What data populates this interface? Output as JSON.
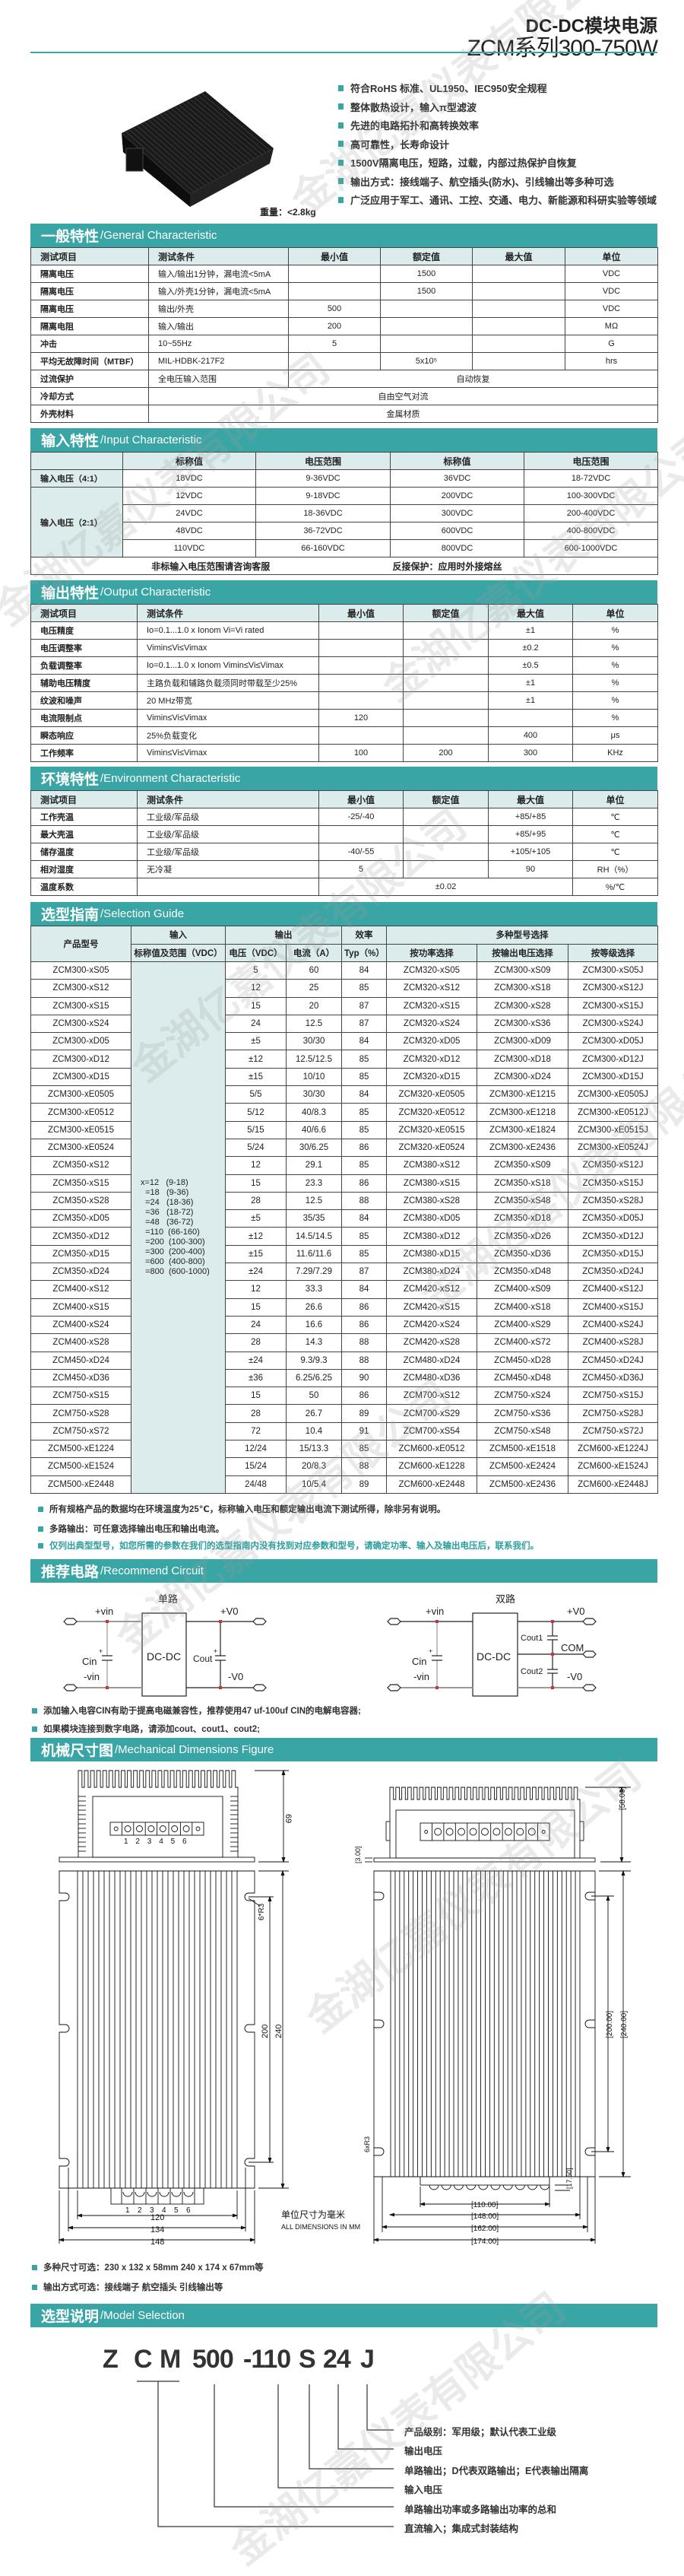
{
  "watermark": "金湖亿嘉仪表有限公司",
  "header": {
    "title": "DC-DC模块电源",
    "subtitle": "ZCM系列300-750W"
  },
  "features": [
    "符合RoHS 标准、UL1950、IEC950安全规程",
    "整体散热设计，输入π型滤波",
    "先进的电路拓扑和高转换效率",
    "高可靠性，长寿命设计",
    "1500V隔离电压，短路，过载，内部过热保护自恢复",
    "输出方式：接线端子、航空插头(防水)、引线输出等多种可选",
    "广泛应用于军工、通讯、工控、交通、电力、新能源和科研实验等领域"
  ],
  "weight": "重量：<2.8kg",
  "colors": {
    "accent": "#3aa5a5",
    "header_bg": "#dcecec"
  },
  "general": {
    "title_zh": "一般特性",
    "title_en": "/General Characteristic",
    "headers": [
      "测试项目",
      "测试条件",
      "最小值",
      "额定值",
      "最大值",
      "单位"
    ],
    "rows": [
      [
        "隔离电压",
        "输入/输出1分钟，漏电流<5mA",
        "",
        "1500",
        "",
        "VDC"
      ],
      [
        "隔离电压",
        "输入/外壳1分钟，漏电流<5mA",
        "",
        "1500",
        "",
        "VDC"
      ],
      [
        "隔离电压",
        "输出/外壳",
        "500",
        "",
        "",
        "VDC"
      ],
      [
        "隔离电阻",
        "输入/输出",
        "200",
        "",
        "",
        "MΩ"
      ],
      [
        "冲击",
        "10~55Hz",
        "5",
        "",
        "",
        "G"
      ],
      [
        "平均无故障时间（MTBF）",
        "MIL-HDBK-217F2",
        "",
        "5x10⁵",
        "",
        "hrs"
      ],
      [
        "过流保护",
        "全电压输入范围",
        "自动恢复"
      ],
      [
        "冷却方式",
        "自由空气对流"
      ],
      [
        "外壳材料",
        "金属材质"
      ]
    ]
  },
  "input": {
    "title_zh": "输入特性",
    "title_en": "/Input Characteristic",
    "headers": [
      "",
      "标称值",
      "电压范围",
      "标称值",
      "电压范围"
    ],
    "group_4_1": "输入电压（4:1）",
    "group_2_1": "输入电压（2:1）",
    "rows": [
      [
        "18VDC",
        "9-36VDC",
        "36VDC",
        "18-72VDC"
      ],
      [
        "12VDC",
        "9-18VDC",
        "200VDC",
        "100-300VDC"
      ],
      [
        "24VDC",
        "18-36VDC",
        "300VDC",
        "200-400VDC"
      ],
      [
        "48VDC",
        "36-72VDC",
        "600VDC",
        "400-800VDC"
      ],
      [
        "110VDC",
        "66-160VDC",
        "800VDC",
        "600-1000VDC"
      ]
    ],
    "note_left": "非标输入电压范围请咨询客服",
    "note_right": "反接保护：应用时外接熔丝"
  },
  "output": {
    "title_zh": "输出特性",
    "title_en": "/Output Characteristic",
    "headers": [
      "测试项目",
      "测试条件",
      "最小值",
      "额定值",
      "最大值",
      "单位"
    ],
    "rows": [
      [
        "电压精度",
        "Io=0.1...1.0 x Ionom Vi=Vi rated",
        "",
        "",
        "±1",
        "%"
      ],
      [
        "电压调整率",
        "Vimin≤Vi≤Vimax",
        "",
        "",
        "±0.2",
        "%"
      ],
      [
        "负载调整率",
        "Io=0.1...1.0 x Ionom Vimin≤Vi≤Vimax",
        "",
        "",
        "±0.5",
        "%"
      ],
      [
        "辅助电压精度",
        "主路负载和辅路负载须同时带载至少25%",
        "",
        "",
        "±1",
        "%"
      ],
      [
        "纹波和噪声",
        "20 MHz带宽",
        "",
        "",
        "±1",
        "%"
      ],
      [
        "电流限制点",
        "Vimin≤Vi≤Vimax",
        "120",
        "",
        "",
        "%"
      ],
      [
        "瞬态响应",
        "25%负载变化",
        "",
        "",
        "400",
        "μs"
      ],
      [
        "工作频率",
        "Vimin≤Vi≤Vimax",
        "100",
        "200",
        "300",
        "KHz"
      ]
    ]
  },
  "environment": {
    "title_zh": "环境特性",
    "title_en": "/Environment Characteristic",
    "headers": [
      "测试项目",
      "测试条件",
      "最小值",
      "额定值",
      "最大值",
      "单位"
    ],
    "rows": [
      [
        "工作壳温",
        "工业级/军品级",
        "-25/-40",
        "",
        "+85/+85",
        "℃"
      ],
      [
        "最大壳温",
        "工业级/军品级",
        "",
        "",
        "+85/+95",
        "℃"
      ],
      [
        "储存温度",
        "工业级/军品级",
        "-40/-55",
        "",
        "+105/+105",
        "℃"
      ],
      [
        "相对湿度",
        "无冷凝",
        "5",
        "",
        "90",
        "RH（%）"
      ],
      [
        "温度系数",
        "",
        "±0.02",
        "%/℃"
      ]
    ]
  },
  "selection": {
    "title_zh": "选型指南",
    "title_en": "/Selection Guide",
    "h_model": "产品型号",
    "h_input": "输入",
    "h_output": "输出",
    "h_eff": "效率",
    "h_multi": "多种型号选择",
    "h_input_sub": "标称值及范围（VDC）",
    "h_voltage": "电压（VDC）",
    "h_current": "电流（A）",
    "h_typ": "Typ（%）",
    "h_by_power": "按功率选择",
    "h_by_vout": "按输出电压选择",
    "h_by_grade": "按等级选择",
    "input_codes": "x=12   (9-18)\n  =18   (9-36)\n  =24   (18-36)\n  =36   (18-72)\n  =48   (36-72)\n  =110  (66-160)\n  =200  (100-300)\n  =300  (200-400)\n  =600  (400-800)\n  =800  (600-1000)",
    "rows": [
      [
        "ZCM300-xS05",
        "5",
        "60",
        "84",
        "ZCM320-xS05",
        "ZCM300-xS09",
        "ZCM300-xS05J"
      ],
      [
        "ZCM300-xS12",
        "12",
        "25",
        "85",
        "ZCM320-xS12",
        "ZCM300-xS18",
        "ZCM300-xS12J"
      ],
      [
        "ZCM300-xS15",
        "15",
        "20",
        "87",
        "ZCM320-xS15",
        "ZCM300-xS28",
        "ZCM300-xS15J"
      ],
      [
        "ZCM300-xS24",
        "24",
        "12.5",
        "87",
        "ZCM320-xS24",
        "ZCM300-xS36",
        "ZCM300-xS24J"
      ],
      [
        "ZCM300-xD05",
        "±5",
        "30/30",
        "84",
        "ZCM320-xD05",
        "ZCM300-xD09",
        "ZCM300-xD05J"
      ],
      [
        "ZCM300-xD12",
        "±12",
        "12.5/12.5",
        "85",
        "ZCM320-xD12",
        "ZCM300-xD18",
        "ZCM300-xD12J"
      ],
      [
        "ZCM300-xD15",
        "±15",
        "10/10",
        "85",
        "ZCM320-xD15",
        "ZCM300-xD24",
        "ZCM300-xD15J"
      ],
      [
        "ZCM300-xE0505",
        "5/5",
        "30/30",
        "84",
        "ZCM320-xE0505",
        "ZCM300-xE1215",
        "ZCM300-xE0505J"
      ],
      [
        "ZCM300-xE0512",
        "5/12",
        "40/8.3",
        "85",
        "ZCM320-xE0512",
        "ZCM300-xE1218",
        "ZCM300-xE0512J"
      ],
      [
        "ZCM300-xE0515",
        "5/15",
        "40/6.6",
        "85",
        "ZCM320-xE0515",
        "ZCM300-xE1824",
        "ZCM300-xE0515J"
      ],
      [
        "ZCM300-xE0524",
        "5/24",
        "30/6.25",
        "86",
        "ZCM320-xE0524",
        "ZCM300-xE2436",
        "ZCM300-xE0524J"
      ],
      [
        "ZCM350-xS12",
        "12",
        "29.1",
        "85",
        "ZCM380-xS12",
        "ZCM350-xS09",
        "ZCM350-xS12J"
      ],
      [
        "ZCM350-xS15",
        "15",
        "23.3",
        "86",
        "ZCM380-xS15",
        "ZCM350-xS18",
        "ZCM350-xS15J"
      ],
      [
        "ZCM350-xS28",
        "28",
        "12.5",
        "88",
        "ZCM380-xS28",
        "ZCM350-xS48",
        "ZCM350-xS28J"
      ],
      [
        "ZCM350-xD05",
        "±5",
        "35/35",
        "84",
        "ZCM380-xD05",
        "ZCM350-xD18",
        "ZCM350-xD05J"
      ],
      [
        "ZCM350-xD12",
        "±12",
        "14.5/14.5",
        "85",
        "ZCM380-xD12",
        "ZCM350-xD26",
        "ZCM350-xD12J"
      ],
      [
        "ZCM350-xD15",
        "±15",
        "11.6/11.6",
        "85",
        "ZCM380-xD15",
        "ZCM350-xD36",
        "ZCM350-xD15J"
      ],
      [
        "ZCM350-xD24",
        "±24",
        "7.29/7.29",
        "87",
        "ZCM380-xD24",
        "ZCM350-xD48",
        "ZCM350-xD24J"
      ],
      [
        "ZCM400-xS12",
        "12",
        "33.3",
        "84",
        "ZCM420-xS12",
        "ZCM400-xS09",
        "ZCM400-xS12J"
      ],
      [
        "ZCM400-xS15",
        "15",
        "26.6",
        "86",
        "ZCM420-xS15",
        "ZCM400-xS18",
        "ZCM400-xS15J"
      ],
      [
        "ZCM400-xS24",
        "24",
        "16.6",
        "86",
        "ZCM420-xS24",
        "ZCM400-xS29",
        "ZCM400-xS24J"
      ],
      [
        "ZCM400-xS28",
        "28",
        "14.3",
        "88",
        "ZCM420-xS28",
        "ZCM400-xS72",
        "ZCM400-xS28J"
      ],
      [
        "ZCM450-xD24",
        "±24",
        "9.3/9.3",
        "88",
        "ZCM480-xD24",
        "ZCM450-xD28",
        "ZCM450-xD24J"
      ],
      [
        "ZCM450-xD36",
        "±36",
        "6.25/6.25",
        "90",
        "ZCM480-xD36",
        "ZCM450-xD48",
        "ZCM450-xD36J"
      ],
      [
        "ZCM750-xS15",
        "15",
        "50",
        "86",
        "ZCM700-xS12",
        "ZCM750-xS24",
        "ZCM750-xS15J"
      ],
      [
        "ZCM750-xS28",
        "28",
        "26.7",
        "89",
        "ZCM700-xS29",
        "ZCM750-xS36",
        "ZCM750-xS28J"
      ],
      [
        "ZCM750-xS72",
        "72",
        "10.4",
        "91",
        "ZCM700-xS54",
        "ZCM750-xS48",
        "ZCM750-xS72J"
      ],
      [
        "ZCM500-xE1224",
        "12/24",
        "15/13.3",
        "85",
        "ZCM600-xE0512",
        "ZCM500-xE1518",
        "ZCM600-xE1224J"
      ],
      [
        "ZCM500-xE1524",
        "15/24",
        "20/8.3",
        "88",
        "ZCM600-xE1228",
        "ZCM500-xE2424",
        "ZCM600-xE1524J"
      ],
      [
        "ZCM500-xE2448",
        "24/48",
        "10/5.4",
        "89",
        "ZCM600-xE2448",
        "ZCM500-xE2436",
        "ZCM600-xE2448J"
      ]
    ],
    "notes": [
      "所有规格产品的数据均在环境温度为25℃，标称输入电压和额定输出电流下测试所得，除非另有说明。",
      "多路输出：可任意选择输出电压和输出电流。",
      "仅列出典型型号，如您所需的参数在我们的选型指南内没有找到对应参数和型号，请确定功率、输入及输出电压后，联系我们。"
    ]
  },
  "circuit": {
    "title_zh": "推荐电路",
    "title_en": "/Recommend Circuit",
    "single": {
      "title": "单路",
      "vin_p": "+vin",
      "vin_n": "-vin",
      "cin": "Cin",
      "box": "DC-DC",
      "vo_p": "+V0",
      "vo_n": "-V0",
      "cout": "Cout",
      "plus": "+"
    },
    "dual": {
      "title": "双路",
      "vin_p": "+vin",
      "vin_n": "-vin",
      "cin": "Cin",
      "box": "DC-DC",
      "vo_p": "+V0",
      "com": "COM",
      "vo_n": "-V0",
      "cout1": "Cout1",
      "cout2": "Cout2",
      "plus": "+"
    },
    "notes": [
      "添加输入电容CIN有助于提高电磁兼容性，推荐使用47 uf-100uf CIN的电解电容器;",
      "如果模块连接到数字电路，请添加cout、cout1、cout2;"
    ]
  },
  "mechanical": {
    "title_zh": "机械尺寸图",
    "title_en": "/Mechanical Dimensions Figure",
    "left": {
      "pins": [
        "1",
        "2",
        "3",
        "4",
        "5",
        "6"
      ],
      "dim_h": "69",
      "dim_r": "6*R3",
      "dim_200": "200",
      "dim_240": "240",
      "dim_120": "120",
      "dim_134": "134",
      "dim_148": "148"
    },
    "unit_zh": "单位尺寸为毫米",
    "unit_en": "ALL DIMENSIONS IN MM",
    "right": {
      "dim_h": "[58.00]",
      "dim_3": "[3.00]",
      "dim_200": "[200.00]",
      "dim_240": "[240.00]",
      "dim_r": "6xR3",
      "dim_17": "[17.50]",
      "dim_110": "[110.00]",
      "dim_148": "[148.00]",
      "dim_162": "[162.00]",
      "dim_174": "[174.00]"
    },
    "notes": [
      "多种尺寸可选：230 x 132 x 58mm   240 x 174 x 67mm等",
      "输出方式可选：接线端子 航空插头 引线输出等"
    ]
  },
  "model": {
    "title_zh": "选型说明",
    "title_en": "/Model Selection",
    "code_parts": [
      "Z",
      "C",
      "M",
      "500",
      "-110",
      "S",
      "24",
      "J"
    ],
    "labels": [
      "产品级别：军用级；默认代表工业级",
      "输出电压",
      "单路输出；D代表双路输出；E代表输出隔离",
      "输入电压",
      "单路输出功率或多路输出功率的总和",
      "直流输入；集成式封装结构"
    ]
  }
}
